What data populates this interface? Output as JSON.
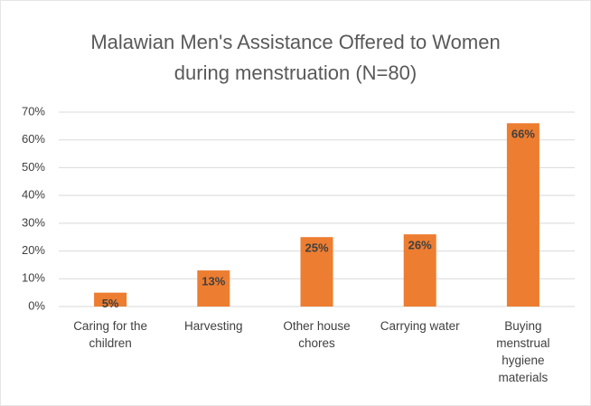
{
  "chart_data": {
    "type": "bar",
    "title": "Malawian Men's Assistance Offered to Women during menstruation (N=80)",
    "categories": [
      "Caring for the children",
      "Harvesting",
      "Other house chores",
      "Carrying water",
      "Buying menstrual hygiene materials"
    ],
    "values": [
      5,
      13,
      25,
      26,
      66
    ],
    "value_labels": [
      "5%",
      "13%",
      "25%",
      "26%",
      "66%"
    ],
    "color": "#ed7d31",
    "ylim": [
      0,
      70
    ],
    "yticks": [
      {
        "value": 0,
        "label": "0%"
      },
      {
        "value": 10,
        "label": "10%"
      },
      {
        "value": 20,
        "label": "20%"
      },
      {
        "value": 30,
        "label": "30%"
      },
      {
        "value": 40,
        "label": "40%"
      },
      {
        "value": 50,
        "label": "50%"
      },
      {
        "value": 60,
        "label": "60%"
      },
      {
        "value": 70,
        "label": "70%"
      }
    ],
    "grid": true
  }
}
